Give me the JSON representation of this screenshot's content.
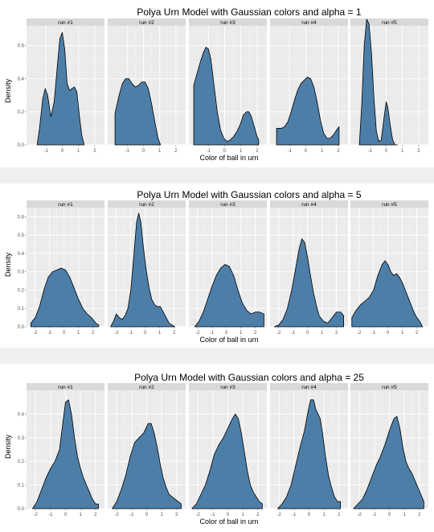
{
  "chart_data": [
    {
      "type": "area",
      "title": "Polya Urn Model with Gaussian colors and alpha = 1",
      "xlabel": "Color of ball in urn",
      "ylabel": "Density",
      "xlim": [
        -2.2,
        2.6
      ],
      "ylim": [
        0,
        0.72
      ],
      "xticks": [
        -1,
        0,
        1,
        2
      ],
      "yticks": [
        0.0,
        0.2,
        0.4,
        0.6
      ],
      "grid": true,
      "facets": [
        {
          "name": "run #1",
          "x": [
            -1.55,
            -1.4,
            -1.2,
            -1.05,
            -0.9,
            -0.7,
            -0.5,
            -0.3,
            -0.15,
            0.0,
            0.15,
            0.3,
            0.45,
            0.6,
            0.75,
            0.9,
            1.05,
            1.2,
            1.35
          ],
          "y": [
            0.0,
            0.1,
            0.28,
            0.34,
            0.3,
            0.17,
            0.26,
            0.48,
            0.64,
            0.68,
            0.58,
            0.37,
            0.33,
            0.34,
            0.35,
            0.32,
            0.18,
            0.06,
            0.0
          ]
        },
        {
          "name": "run #2",
          "x": [
            -1.75,
            -1.5,
            -1.3,
            -1.1,
            -0.9,
            -0.7,
            -0.5,
            -0.3,
            -0.1,
            0.1,
            0.3,
            0.5,
            0.7,
            0.9,
            1.05
          ],
          "y": [
            0.19,
            0.3,
            0.37,
            0.4,
            0.4,
            0.37,
            0.35,
            0.36,
            0.38,
            0.38,
            0.34,
            0.25,
            0.14,
            0.04,
            0.0
          ]
        },
        {
          "name": "run #3",
          "x": [
            -1.9,
            -1.7,
            -1.5,
            -1.3,
            -1.15,
            -1.0,
            -0.85,
            -0.65,
            -0.45,
            -0.25,
            -0.05,
            0.15,
            0.35,
            0.55,
            0.75,
            0.95,
            1.15,
            1.35,
            1.5,
            1.65,
            1.8,
            2.0,
            2.1
          ],
          "y": [
            0.36,
            0.43,
            0.5,
            0.56,
            0.59,
            0.58,
            0.52,
            0.36,
            0.2,
            0.09,
            0.04,
            0.02,
            0.03,
            0.05,
            0.08,
            0.12,
            0.18,
            0.2,
            0.2,
            0.17,
            0.12,
            0.05,
            0.03
          ]
        },
        {
          "name": "run #4",
          "x": [
            -1.8,
            -1.5,
            -1.3,
            -1.1,
            -0.9,
            -0.7,
            -0.5,
            -0.3,
            -0.1,
            0.1,
            0.3,
            0.5,
            0.7,
            0.9,
            1.1,
            1.3,
            1.5,
            1.7,
            1.9,
            2.05
          ],
          "y": [
            0.1,
            0.1,
            0.11,
            0.14,
            0.2,
            0.27,
            0.33,
            0.37,
            0.39,
            0.41,
            0.4,
            0.35,
            0.26,
            0.15,
            0.07,
            0.04,
            0.04,
            0.06,
            0.09,
            0.11
          ]
        },
        {
          "name": "run #5",
          "x": [
            -1.65,
            -1.5,
            -1.35,
            -1.2,
            -1.05,
            -0.9,
            -0.75,
            -0.6,
            -0.45,
            -0.3,
            -0.15,
            0.0,
            0.1,
            0.25,
            0.4,
            0.55,
            0.7
          ],
          "y": [
            0.0,
            0.25,
            0.6,
            0.76,
            0.73,
            0.55,
            0.28,
            0.08,
            0.02,
            0.03,
            0.15,
            0.26,
            0.23,
            0.12,
            0.03,
            0.0,
            0.0
          ]
        }
      ]
    },
    {
      "type": "area",
      "title": "Polya Urn Model with Gaussian colors and alpha = 5",
      "xlabel": "Color of ball in urn",
      "ylabel": "Density",
      "xlim": [
        -2.6,
        2.8
      ],
      "ylim": [
        0,
        0.65
      ],
      "xticks": [
        -2,
        -1,
        0,
        1,
        2
      ],
      "yticks": [
        0.0,
        0.1,
        0.2,
        0.3,
        0.4,
        0.5,
        0.6
      ],
      "grid": true,
      "facets": [
        {
          "name": "run #1",
          "x": [
            -2.3,
            -2.0,
            -1.7,
            -1.4,
            -1.1,
            -0.8,
            -0.5,
            -0.2,
            0.1,
            0.4,
            0.7,
            1.0,
            1.3,
            1.6,
            1.9,
            2.2,
            2.4
          ],
          "y": [
            0.02,
            0.05,
            0.11,
            0.2,
            0.27,
            0.3,
            0.31,
            0.32,
            0.31,
            0.27,
            0.21,
            0.15,
            0.1,
            0.07,
            0.05,
            0.02,
            0.01
          ]
        },
        {
          "name": "run #2",
          "x": [
            -2.4,
            -2.2,
            -2.0,
            -1.8,
            -1.6,
            -1.4,
            -1.2,
            -1.0,
            -0.8,
            -0.6,
            -0.45,
            -0.3,
            -0.15,
            0.05,
            0.25,
            0.45,
            0.65,
            0.85,
            1.05,
            1.25,
            1.45,
            1.65,
            1.85,
            2.05
          ],
          "y": [
            0.0,
            0.03,
            0.07,
            0.05,
            0.04,
            0.06,
            0.1,
            0.2,
            0.38,
            0.57,
            0.62,
            0.57,
            0.45,
            0.32,
            0.22,
            0.15,
            0.12,
            0.11,
            0.11,
            0.08,
            0.05,
            0.02,
            0.01,
            0.0
          ]
        },
        {
          "name": "run #3",
          "x": [
            -2.2,
            -1.9,
            -1.6,
            -1.3,
            -1.0,
            -0.7,
            -0.4,
            -0.1,
            0.2,
            0.5,
            0.8,
            1.1,
            1.4,
            1.7,
            2.0,
            2.3,
            2.6
          ],
          "y": [
            0.0,
            0.03,
            0.08,
            0.15,
            0.22,
            0.28,
            0.32,
            0.34,
            0.33,
            0.28,
            0.2,
            0.13,
            0.09,
            0.07,
            0.08,
            0.08,
            0.07
          ]
        },
        {
          "name": "run #4",
          "x": [
            -2.3,
            -2.0,
            -1.7,
            -1.4,
            -1.1,
            -0.8,
            -0.6,
            -0.4,
            -0.2,
            0.0,
            0.2,
            0.4,
            0.6,
            0.8,
            1.1,
            1.4,
            1.7,
            2.0,
            2.3,
            2.5
          ],
          "y": [
            0.0,
            0.01,
            0.04,
            0.1,
            0.2,
            0.33,
            0.42,
            0.48,
            0.46,
            0.38,
            0.28,
            0.19,
            0.12,
            0.06,
            0.03,
            0.02,
            0.05,
            0.08,
            0.08,
            0.06
          ]
        },
        {
          "name": "run #5",
          "x": [
            -2.5,
            -2.2,
            -1.9,
            -1.6,
            -1.3,
            -1.0,
            -0.7,
            -0.4,
            -0.2,
            0.0,
            0.2,
            0.4,
            0.6,
            0.8,
            1.0,
            1.2,
            1.4,
            1.6,
            1.8,
            2.0,
            2.2,
            2.4
          ],
          "y": [
            0.05,
            0.09,
            0.12,
            0.14,
            0.16,
            0.2,
            0.28,
            0.34,
            0.36,
            0.34,
            0.3,
            0.28,
            0.29,
            0.27,
            0.24,
            0.2,
            0.16,
            0.12,
            0.08,
            0.05,
            0.03,
            0.0
          ]
        }
      ]
    },
    {
      "type": "area",
      "title": "Polya Urn Model with Gaussian colors and alpha = 25",
      "xlabel": "Color of ball in urn",
      "ylabel": "Density",
      "xlim": [
        -2.6,
        2.6
      ],
      "ylim": [
        0,
        0.5
      ],
      "xticks": [
        -2,
        -1,
        0,
        1,
        2
      ],
      "yticks": [
        0.0,
        0.1,
        0.2,
        0.3,
        0.4
      ],
      "grid": true,
      "facets": [
        {
          "name": "run #1",
          "x": [
            -2.2,
            -1.9,
            -1.6,
            -1.3,
            -1.0,
            -0.7,
            -0.4,
            -0.2,
            0.0,
            0.2,
            0.4,
            0.6,
            0.8,
            1.0,
            1.2,
            1.4,
            1.6,
            1.8,
            2.0,
            2.2
          ],
          "y": [
            0.0,
            0.03,
            0.08,
            0.13,
            0.17,
            0.2,
            0.25,
            0.35,
            0.45,
            0.46,
            0.4,
            0.3,
            0.22,
            0.17,
            0.13,
            0.1,
            0.07,
            0.04,
            0.02,
            0.02
          ]
        },
        {
          "name": "run #2",
          "x": [
            -2.3,
            -2.0,
            -1.7,
            -1.4,
            -1.1,
            -0.8,
            -0.5,
            -0.2,
            0.1,
            0.3,
            0.5,
            0.7,
            0.9,
            1.1,
            1.3,
            1.5,
            1.7,
            1.9,
            2.1,
            2.3
          ],
          "y": [
            0.0,
            0.03,
            0.08,
            0.14,
            0.22,
            0.28,
            0.3,
            0.32,
            0.36,
            0.36,
            0.32,
            0.26,
            0.19,
            0.13,
            0.09,
            0.06,
            0.05,
            0.04,
            0.03,
            0.02
          ]
        },
        {
          "name": "run #3",
          "x": [
            -2.4,
            -2.1,
            -1.8,
            -1.5,
            -1.2,
            -0.9,
            -0.6,
            -0.3,
            0.0,
            0.3,
            0.5,
            0.7,
            0.9,
            1.1,
            1.3,
            1.5,
            1.7,
            1.9,
            2.1,
            2.3
          ],
          "y": [
            0.0,
            0.02,
            0.06,
            0.1,
            0.16,
            0.23,
            0.27,
            0.3,
            0.34,
            0.38,
            0.4,
            0.38,
            0.32,
            0.24,
            0.16,
            0.1,
            0.07,
            0.05,
            0.03,
            0.02
          ]
        },
        {
          "name": "run #4",
          "x": [
            -2.1,
            -1.8,
            -1.5,
            -1.2,
            -0.9,
            -0.6,
            -0.3,
            -0.1,
            0.1,
            0.3,
            0.45,
            0.6,
            0.75,
            0.9,
            1.1,
            1.3,
            1.5,
            1.7,
            1.9,
            2.1
          ],
          "y": [
            0.0,
            0.02,
            0.05,
            0.1,
            0.18,
            0.26,
            0.33,
            0.4,
            0.46,
            0.46,
            0.42,
            0.4,
            0.38,
            0.32,
            0.22,
            0.14,
            0.09,
            0.05,
            0.03,
            0.03
          ]
        },
        {
          "name": "run #5",
          "x": [
            -2.4,
            -2.1,
            -1.8,
            -1.5,
            -1.2,
            -0.9,
            -0.6,
            -0.3,
            0.0,
            0.3,
            0.5,
            0.7,
            0.9,
            1.1,
            1.3,
            1.5,
            1.7,
            1.9,
            2.1,
            2.3
          ],
          "y": [
            0.0,
            0.02,
            0.04,
            0.08,
            0.13,
            0.18,
            0.22,
            0.27,
            0.33,
            0.38,
            0.39,
            0.34,
            0.26,
            0.2,
            0.17,
            0.15,
            0.12,
            0.09,
            0.06,
            0.03
          ]
        }
      ]
    }
  ],
  "colors": {
    "fill": "#4c7ea8",
    "outline": "#000000",
    "panel": "#ebebeb",
    "grid": "#ffffff",
    "strip": "#d9d9d9",
    "separator": "#f0f0f0"
  }
}
